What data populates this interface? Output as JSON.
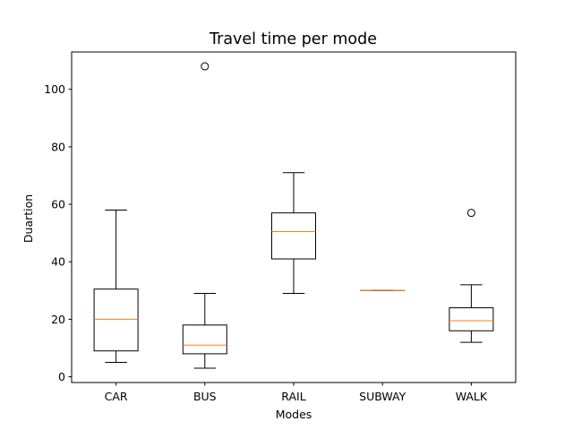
{
  "chart_data": {
    "type": "box",
    "title": "Travel time per mode",
    "xlabel": "Modes",
    "ylabel": "Duartion",
    "categories": [
      "CAR",
      "BUS",
      "RAIL",
      "SUBWAY",
      "WALK"
    ],
    "ylim": [
      -2,
      113
    ],
    "yticks": [
      0,
      20,
      40,
      60,
      80,
      100
    ],
    "grid": false,
    "colors": {
      "box": "#000000",
      "median": "#ff7f0e",
      "frame": "#000000",
      "background": "#ffffff"
    },
    "boxes": [
      {
        "category": "CAR",
        "whisker_low": 5,
        "q1": 9,
        "median": 20,
        "q3": 30.5,
        "whisker_high": 58,
        "outliers": []
      },
      {
        "category": "BUS",
        "whisker_low": 3,
        "q1": 8,
        "median": 11,
        "q3": 18,
        "whisker_high": 29,
        "outliers": [
          108
        ]
      },
      {
        "category": "RAIL",
        "whisker_low": 29,
        "q1": 41,
        "median": 50.5,
        "q3": 57,
        "whisker_high": 71,
        "outliers": []
      },
      {
        "category": "SUBWAY",
        "whisker_low": 30,
        "q1": 30,
        "median": 30,
        "q3": 30,
        "whisker_high": 30,
        "outliers": []
      },
      {
        "category": "WALK",
        "whisker_low": 12,
        "q1": 16,
        "median": 19.5,
        "q3": 24,
        "whisker_high": 32,
        "outliers": [
          57
        ]
      }
    ]
  }
}
